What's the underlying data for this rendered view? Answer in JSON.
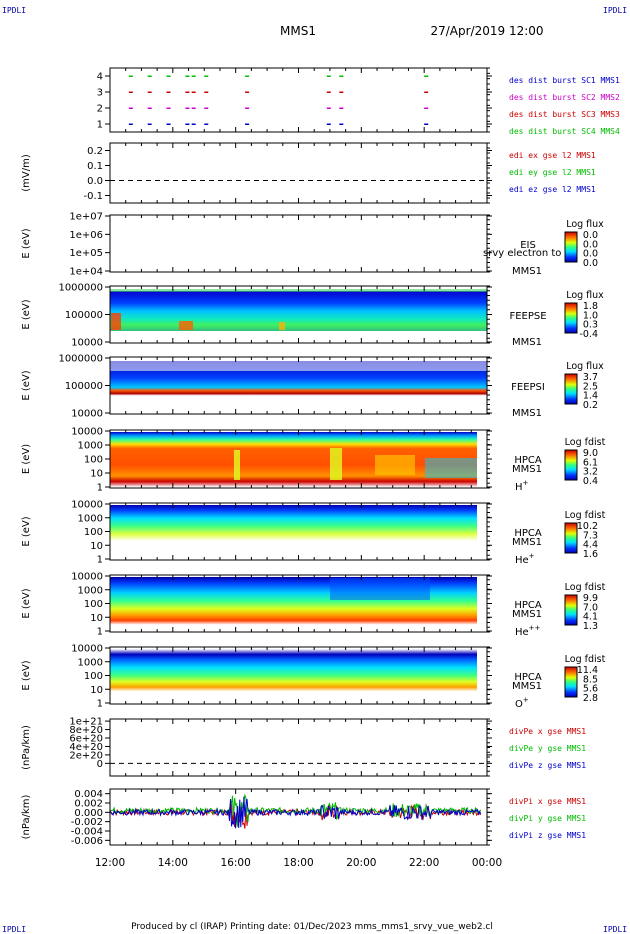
{
  "corner_label": "IPDLI",
  "header": {
    "spacecraft": "MMS1",
    "date": "27/Apr/2019 12:00"
  },
  "footer": "Produced by cl (IRAP)   Printing date: 01/Dec/2023   mms_mms1_srvy_vue_web2.cl",
  "time_axis": {
    "ticks": [
      "12:00",
      "14:00",
      "16:00",
      "18:00",
      "20:00",
      "22:00",
      "00:00"
    ]
  },
  "chart_data": [
    {
      "type": "scatter",
      "ylabel": "",
      "ylim": [
        0.5,
        4.5
      ],
      "yticks": [
        "1",
        "2",
        "3",
        "4"
      ],
      "legend": [
        {
          "text": "des dist burst SC1 MMS1",
          "color": "#0000cc"
        },
        {
          "text": "des dist burst SC2 MMS2",
          "color": "#cc00cc"
        },
        {
          "text": "des dist burst SC3 MMS3",
          "color": "#cc0000"
        },
        {
          "text": "des dist burst SC4 MMS4",
          "color": "#00bb00"
        }
      ],
      "series": [
        {
          "name": "des dist burst SC1 MMS1",
          "y": 1,
          "color": "#0000cc",
          "x_hours": [
            12.6,
            13.2,
            13.8,
            14.4,
            14.6,
            15.0,
            16.3,
            18.9,
            19.3,
            22.0
          ]
        },
        {
          "name": "des dist burst SC2 MMS2",
          "y": 2,
          "color": "#cc00cc",
          "x_hours": [
            12.6,
            13.2,
            13.8,
            14.4,
            14.6,
            15.0,
            16.3,
            18.9,
            19.3,
            22.0
          ]
        },
        {
          "name": "des dist burst SC3 MMS3",
          "y": 3,
          "color": "#cc0000",
          "x_hours": [
            12.6,
            13.2,
            13.8,
            14.4,
            14.6,
            15.0,
            16.3,
            18.9,
            19.3,
            22.0
          ]
        },
        {
          "name": "des dist burst SC4 MMS4",
          "y": 4,
          "color": "#00bb00",
          "x_hours": [
            12.6,
            13.2,
            13.8,
            14.4,
            14.6,
            15.0,
            16.3,
            18.9,
            19.3,
            22.0
          ]
        }
      ]
    },
    {
      "type": "line",
      "ylabel": "(mV/m)",
      "ylim": [
        -0.15,
        0.25
      ],
      "yticks": [
        "0.2",
        "0.1",
        "0.0",
        "-0.1"
      ],
      "legend": [
        {
          "text": "edi ex gse l2 MMS1",
          "color": "#cc0000"
        },
        {
          "text": "edi ey gse l2 MMS1",
          "color": "#00bb00"
        },
        {
          "text": "edi ez gse l2 MMS1",
          "color": "#0000cc"
        }
      ],
      "zero_line": true
    },
    {
      "type": "heatmap",
      "ylabel": "E (eV)",
      "yticks": [
        "1e+07",
        "1e+06",
        "1e+05",
        "1e+04"
      ],
      "labels": [
        "EIS",
        "MMS1"
      ],
      "overlay_text": "srvy electron to",
      "colorbar": {
        "title": "Log flux",
        "ticks": [
          "0.0",
          "0.0",
          "0.0",
          "0.0"
        ]
      },
      "empty": true
    },
    {
      "type": "heatmap",
      "ylabel": "E (eV)",
      "yticks": [
        "1000000",
        "100000",
        "10000"
      ],
      "labels": [
        "FEEPSE",
        "MMS1"
      ],
      "colorbar": {
        "title": "Log flux",
        "ticks": [
          "1.8",
          "1.0",
          "0.3",
          "-0.4"
        ]
      }
    },
    {
      "type": "heatmap",
      "ylabel": "E (eV)",
      "yticks": [
        "1000000",
        "100000",
        "10000"
      ],
      "labels": [
        "FEEPSI",
        "MMS1"
      ],
      "colorbar": {
        "title": "Log flux",
        "ticks": [
          "3.7",
          "2.5",
          "1.4",
          "0.2"
        ]
      }
    },
    {
      "type": "heatmap",
      "ylabel": "E (eV)",
      "yticks": [
        "10000",
        "1000",
        "100",
        "10",
        "1"
      ],
      "labels": [
        "HPCA",
        "MMS1"
      ],
      "species": {
        "base": "H",
        "sup": "+"
      },
      "colorbar": {
        "title": "Log fdist",
        "ticks": [
          "9.0",
          "6.1",
          "3.2",
          "0.4"
        ]
      }
    },
    {
      "type": "heatmap",
      "ylabel": "E (eV)",
      "yticks": [
        "10000",
        "1000",
        "100",
        "10",
        "1"
      ],
      "labels": [
        "HPCA",
        "MMS1"
      ],
      "species": {
        "base": "He",
        "sup": "+"
      },
      "colorbar": {
        "title": "Log fdist",
        "ticks": [
          "10.2",
          "7.3",
          "4.4",
          "1.6"
        ]
      }
    },
    {
      "type": "heatmap",
      "ylabel": "E (eV)",
      "yticks": [
        "10000",
        "1000",
        "100",
        "10",
        "1"
      ],
      "labels": [
        "HPCA",
        "MMS1"
      ],
      "species": {
        "base": "He",
        "sup": "++"
      },
      "colorbar": {
        "title": "Log fdist",
        "ticks": [
          "9.9",
          "7.0",
          "4.1",
          "1.3"
        ]
      }
    },
    {
      "type": "heatmap",
      "ylabel": "E (eV)",
      "yticks": [
        "10000",
        "1000",
        "100",
        "10",
        "1"
      ],
      "labels": [
        "HPCA",
        "MMS1"
      ],
      "species": {
        "base": "O",
        "sup": "+"
      },
      "colorbar": {
        "title": "Log fdist",
        "ticks": [
          "11.4",
          "8.5",
          "5.6",
          "2.8"
        ]
      }
    },
    {
      "type": "line",
      "ylabel": "(nPa/km)",
      "ylim": [
        -3e+20,
        1.05e+21
      ],
      "yticks": [
        "1e+21",
        "8e+20",
        "6e+20",
        "4e+20",
        "2e+20",
        "0"
      ],
      "legend": [
        {
          "text": "divPe x gse MMS1",
          "color": "#cc0000"
        },
        {
          "text": "divPe y gse MMS1",
          "color": "#00bb00"
        },
        {
          "text": "divPe z gse MMS1",
          "color": "#0000cc"
        }
      ],
      "zero_line": true
    },
    {
      "type": "line",
      "ylabel": "(nPa/km)",
      "ylim": [
        -0.007,
        0.005
      ],
      "yticks": [
        "0.004",
        "0.002",
        "0.000",
        "-0.002",
        "-0.004",
        "-0.006"
      ],
      "legend": [
        {
          "text": "divPi x gse MMS1",
          "color": "#cc0000"
        },
        {
          "text": "divPi y gse MMS1",
          "color": "#00bb00"
        },
        {
          "text": "divPi z gse MMS1",
          "color": "#0000cc"
        }
      ]
    }
  ]
}
